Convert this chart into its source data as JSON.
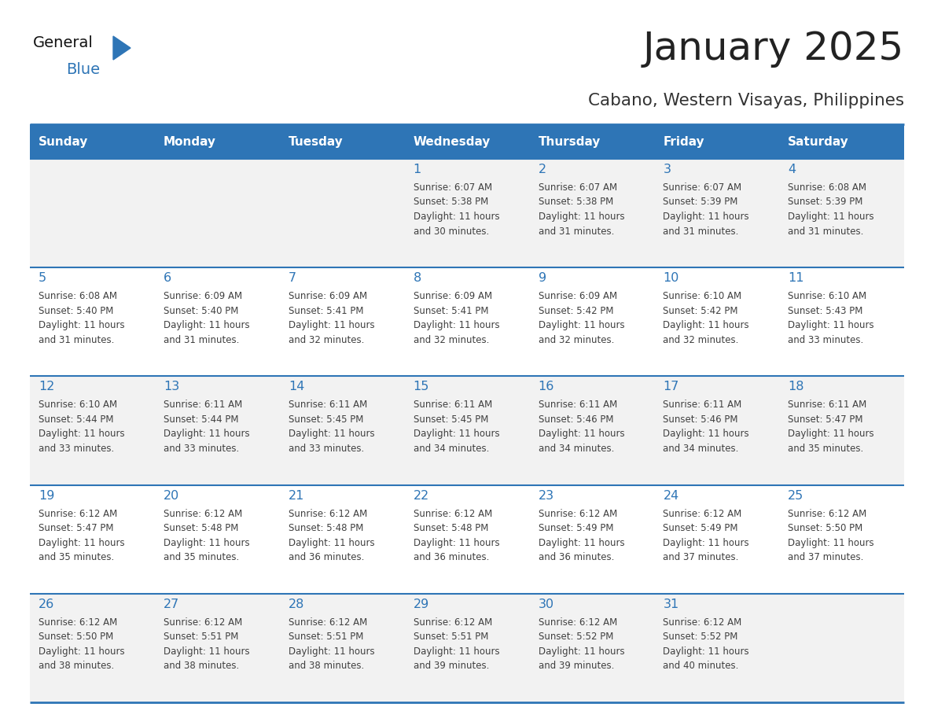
{
  "title": "January 2025",
  "subtitle": "Cabano, Western Visayas, Philippines",
  "days_of_week": [
    "Sunday",
    "Monday",
    "Tuesday",
    "Wednesday",
    "Thursday",
    "Friday",
    "Saturday"
  ],
  "header_bg": "#2E75B6",
  "header_text": "#FFFFFF",
  "row_bg_odd": "#F2F2F2",
  "row_bg_even": "#FFFFFF",
  "day_num_color": "#2E75B6",
  "text_color": "#404040",
  "line_color": "#2E75B6",
  "logo_general_color": "#111111",
  "logo_blue_color": "#2E75B6",
  "logo_triangle_color": "#2E75B6",
  "weeks": [
    [
      {
        "day": null,
        "info": null
      },
      {
        "day": null,
        "info": null
      },
      {
        "day": null,
        "info": null
      },
      {
        "day": 1,
        "info": "Sunrise: 6:07 AM\nSunset: 5:38 PM\nDaylight: 11 hours\nand 30 minutes."
      },
      {
        "day": 2,
        "info": "Sunrise: 6:07 AM\nSunset: 5:38 PM\nDaylight: 11 hours\nand 31 minutes."
      },
      {
        "day": 3,
        "info": "Sunrise: 6:07 AM\nSunset: 5:39 PM\nDaylight: 11 hours\nand 31 minutes."
      },
      {
        "day": 4,
        "info": "Sunrise: 6:08 AM\nSunset: 5:39 PM\nDaylight: 11 hours\nand 31 minutes."
      }
    ],
    [
      {
        "day": 5,
        "info": "Sunrise: 6:08 AM\nSunset: 5:40 PM\nDaylight: 11 hours\nand 31 minutes."
      },
      {
        "day": 6,
        "info": "Sunrise: 6:09 AM\nSunset: 5:40 PM\nDaylight: 11 hours\nand 31 minutes."
      },
      {
        "day": 7,
        "info": "Sunrise: 6:09 AM\nSunset: 5:41 PM\nDaylight: 11 hours\nand 32 minutes."
      },
      {
        "day": 8,
        "info": "Sunrise: 6:09 AM\nSunset: 5:41 PM\nDaylight: 11 hours\nand 32 minutes."
      },
      {
        "day": 9,
        "info": "Sunrise: 6:09 AM\nSunset: 5:42 PM\nDaylight: 11 hours\nand 32 minutes."
      },
      {
        "day": 10,
        "info": "Sunrise: 6:10 AM\nSunset: 5:42 PM\nDaylight: 11 hours\nand 32 minutes."
      },
      {
        "day": 11,
        "info": "Sunrise: 6:10 AM\nSunset: 5:43 PM\nDaylight: 11 hours\nand 33 minutes."
      }
    ],
    [
      {
        "day": 12,
        "info": "Sunrise: 6:10 AM\nSunset: 5:44 PM\nDaylight: 11 hours\nand 33 minutes."
      },
      {
        "day": 13,
        "info": "Sunrise: 6:11 AM\nSunset: 5:44 PM\nDaylight: 11 hours\nand 33 minutes."
      },
      {
        "day": 14,
        "info": "Sunrise: 6:11 AM\nSunset: 5:45 PM\nDaylight: 11 hours\nand 33 minutes."
      },
      {
        "day": 15,
        "info": "Sunrise: 6:11 AM\nSunset: 5:45 PM\nDaylight: 11 hours\nand 34 minutes."
      },
      {
        "day": 16,
        "info": "Sunrise: 6:11 AM\nSunset: 5:46 PM\nDaylight: 11 hours\nand 34 minutes."
      },
      {
        "day": 17,
        "info": "Sunrise: 6:11 AM\nSunset: 5:46 PM\nDaylight: 11 hours\nand 34 minutes."
      },
      {
        "day": 18,
        "info": "Sunrise: 6:11 AM\nSunset: 5:47 PM\nDaylight: 11 hours\nand 35 minutes."
      }
    ],
    [
      {
        "day": 19,
        "info": "Sunrise: 6:12 AM\nSunset: 5:47 PM\nDaylight: 11 hours\nand 35 minutes."
      },
      {
        "day": 20,
        "info": "Sunrise: 6:12 AM\nSunset: 5:48 PM\nDaylight: 11 hours\nand 35 minutes."
      },
      {
        "day": 21,
        "info": "Sunrise: 6:12 AM\nSunset: 5:48 PM\nDaylight: 11 hours\nand 36 minutes."
      },
      {
        "day": 22,
        "info": "Sunrise: 6:12 AM\nSunset: 5:48 PM\nDaylight: 11 hours\nand 36 minutes."
      },
      {
        "day": 23,
        "info": "Sunrise: 6:12 AM\nSunset: 5:49 PM\nDaylight: 11 hours\nand 36 minutes."
      },
      {
        "day": 24,
        "info": "Sunrise: 6:12 AM\nSunset: 5:49 PM\nDaylight: 11 hours\nand 37 minutes."
      },
      {
        "day": 25,
        "info": "Sunrise: 6:12 AM\nSunset: 5:50 PM\nDaylight: 11 hours\nand 37 minutes."
      }
    ],
    [
      {
        "day": 26,
        "info": "Sunrise: 6:12 AM\nSunset: 5:50 PM\nDaylight: 11 hours\nand 38 minutes."
      },
      {
        "day": 27,
        "info": "Sunrise: 6:12 AM\nSunset: 5:51 PM\nDaylight: 11 hours\nand 38 minutes."
      },
      {
        "day": 28,
        "info": "Sunrise: 6:12 AM\nSunset: 5:51 PM\nDaylight: 11 hours\nand 38 minutes."
      },
      {
        "day": 29,
        "info": "Sunrise: 6:12 AM\nSunset: 5:51 PM\nDaylight: 11 hours\nand 39 minutes."
      },
      {
        "day": 30,
        "info": "Sunrise: 6:12 AM\nSunset: 5:52 PM\nDaylight: 11 hours\nand 39 minutes."
      },
      {
        "day": 31,
        "info": "Sunrise: 6:12 AM\nSunset: 5:52 PM\nDaylight: 11 hours\nand 40 minutes."
      },
      {
        "day": null,
        "info": null
      }
    ]
  ]
}
